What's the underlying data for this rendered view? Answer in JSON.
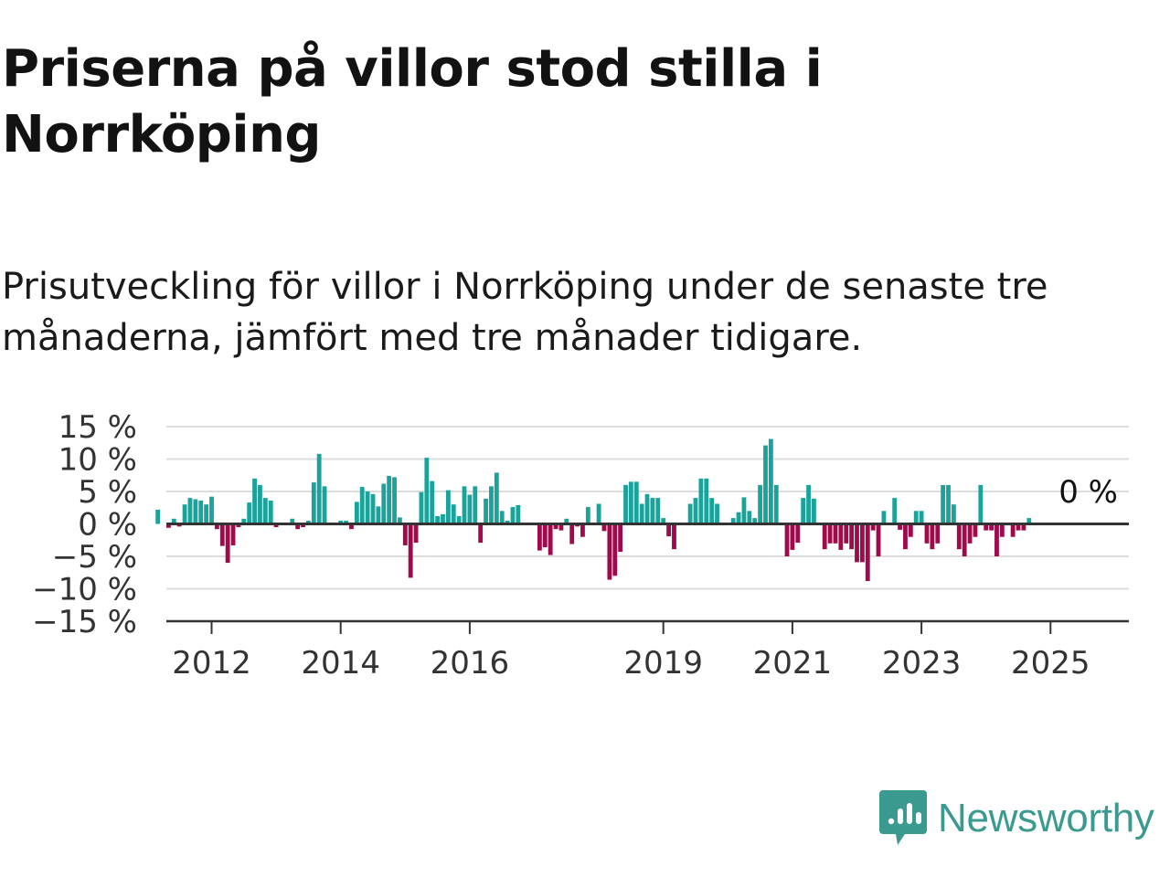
{
  "title": "Priserna på villor stod stilla i Norrköping",
  "subtitle": "Prisutveckling för villor i Norrköping under de senaste tre månaderna, jämfört med tre månader tidigare.",
  "brand": {
    "name": "Newsworthy",
    "color": "#3a9a8f"
  },
  "colors": {
    "positive": "#1aa39b",
    "negative": "#a00a4b",
    "grid": "#dcdcdc",
    "axis": "#333333"
  },
  "chart_data": {
    "type": "bar",
    "title": "Priserna på villor stod stilla i Norrköping",
    "ylabel": "",
    "xlabel": "",
    "ylim": [
      -15,
      15
    ],
    "y_ticks": [
      "15 %",
      "10 %",
      "5 %",
      "0 %",
      "−5 %",
      "−10 %",
      "−15 %"
    ],
    "x_ticks": [
      "2012",
      "2014",
      "2016",
      "2019",
      "2021",
      "2023",
      "2025"
    ],
    "x_tick_years": [
      2012,
      2014,
      2016,
      2019,
      2021,
      2023,
      2025
    ],
    "x_start": "2011-03",
    "frequency": "monthly",
    "grid": true,
    "annotation": {
      "text": "0 %",
      "x": "2025-07",
      "value": 0
    },
    "values": [
      2.2,
      0,
      -0.6,
      0.8,
      -0.4,
      3.0,
      4.0,
      3.8,
      3.6,
      3.0,
      4.2,
      -0.8,
      -3.4,
      -6.0,
      -3.3,
      -0.5,
      0.8,
      3.3,
      7.0,
      6.0,
      4.0,
      3.6,
      -0.5,
      0,
      0,
      0.8,
      -0.8,
      -0.5,
      0.5,
      6.4,
      10.8,
      5.8,
      0,
      0,
      0.5,
      0.5,
      -0.8,
      3.4,
      5.7,
      5.0,
      4.6,
      2.7,
      6.2,
      7.4,
      7.2,
      1.0,
      -3.3,
      -8.3,
      -2.9,
      4.9,
      10.2,
      6.6,
      1.2,
      1.5,
      5.2,
      3.0,
      1.2,
      5.8,
      4.5,
      5.8,
      -2.9,
      3.9,
      5.8,
      7.9,
      2.0,
      0.5,
      2.6,
      2.9,
      0,
      0,
      0,
      -4.1,
      -3.6,
      -4.8,
      -0.8,
      -1.0,
      0.8,
      -3.1,
      -0.4,
      -2.0,
      2.6,
      0,
      3.1,
      -1.1,
      -8.6,
      -8.0,
      -4.3,
      6.0,
      6.5,
      6.5,
      3.1,
      4.6,
      4.0,
      4.0,
      0.9,
      -1.9,
      -3.9,
      0,
      0,
      3.1,
      4.0,
      7.0,
      7.0,
      4.0,
      3.1,
      0,
      0,
      0.9,
      1.8,
      4.1,
      2.0,
      0.9,
      6.0,
      12.1,
      13.1,
      6.0,
      0,
      -5.0,
      -4.0,
      -2.9,
      4.0,
      6.0,
      3.9,
      0,
      -3.9,
      -3.0,
      -3.0,
      -4.0,
      -3.0,
      -3.9,
      -5.9,
      -5.9,
      -8.8,
      -1.0,
      -5.0,
      2.0,
      0,
      4.0,
      -0.9,
      -3.9,
      -2.0,
      2.0,
      2.0,
      -3.0,
      -3.9,
      -3.0,
      6.0,
      6.0,
      3.0,
      -3.9,
      -5.0,
      -3.0,
      -2.0,
      6.0,
      -1.0,
      -1.0,
      -5.0,
      -2.0,
      0,
      -2.0,
      -1.0,
      -1.0,
      0.9,
      0
    ]
  }
}
